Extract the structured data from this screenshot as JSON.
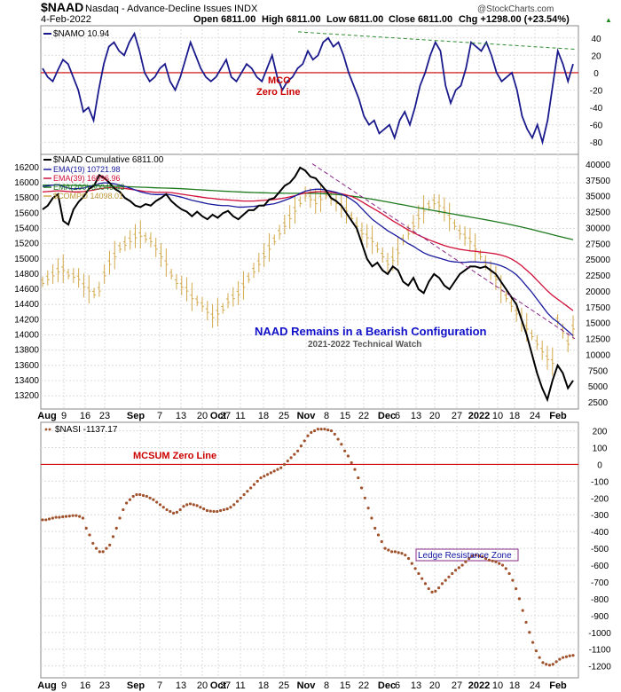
{
  "header": {
    "symbol": "$NAAD",
    "name": "Nasdaq - Advance-Decline Issues",
    "exchange": "INDX",
    "date": "4-Feb-2022",
    "open": "Open 6811.00",
    "high": "High 6811.00",
    "low": "Low 6811.00",
    "close": "Close 6811.00",
    "chg": "Chg +1298.00 (+23.54%)",
    "chg_arrow": "▲",
    "watermark": "@StockCharts.com"
  },
  "colors": {
    "navy": "#1a1a8c",
    "zero_red": "#cc0000",
    "ema19": "#1a1a9e",
    "ema39": "#d0103a",
    "ema200": "#1e7a1e",
    "compo": "#d2a94a",
    "nasi": "#a0522d",
    "trend_green": "#2e8b2e",
    "trend_purple": "#8a2a8a",
    "annot_blue": "#1010c8",
    "grid": "#dcdcdc"
  },
  "chart_data": [
    {
      "id": "namo",
      "type": "line",
      "title": "$NAMO 10.94",
      "ylim": [
        -90,
        50
      ],
      "yticks": [
        40,
        20,
        0,
        -20,
        -40,
        -60,
        -80
      ],
      "annotations": [
        "MCO",
        "Zero Line"
      ],
      "series": [
        {
          "name": "$NAMO",
          "values": [
            5,
            -5,
            -10,
            3,
            15,
            10,
            -5,
            -20,
            -45,
            -40,
            -55,
            -20,
            10,
            30,
            35,
            25,
            20,
            35,
            45,
            25,
            0,
            -10,
            -5,
            5,
            10,
            -10,
            -20,
            -5,
            15,
            35,
            20,
            5,
            -5,
            -10,
            -5,
            5,
            15,
            -5,
            -10,
            0,
            10,
            5,
            -5,
            -10,
            5,
            20,
            -5,
            -20,
            -10,
            -5,
            5,
            10,
            25,
            15,
            20,
            35,
            40,
            30,
            35,
            20,
            0,
            -15,
            -30,
            -50,
            -60,
            -55,
            -70,
            -65,
            -60,
            -75,
            -55,
            -45,
            -60,
            -40,
            -15,
            0,
            20,
            35,
            25,
            -15,
            -35,
            -20,
            -15,
            5,
            35,
            30,
            25,
            35,
            20,
            0,
            -10,
            -5,
            0,
            -20,
            -50,
            -65,
            -75,
            -60,
            -80,
            -55,
            -15,
            25,
            10,
            -10,
            10
          ]
        }
      ]
    },
    {
      "id": "naad",
      "type": "line",
      "title": "$NAAD Cumulative 6811.00",
      "ylim": [
        13050,
        16350
      ],
      "yticks_left": [
        16200,
        16000,
        15800,
        15600,
        15400,
        15200,
        15000,
        14800,
        14600,
        14400,
        14200,
        14000,
        13800,
        13600,
        13400,
        13200
      ],
      "yticks_right": [
        40000,
        37500,
        35000,
        32500,
        30000,
        27500,
        25000,
        22500,
        20000,
        17500,
        15000,
        12500,
        10000,
        7500,
        5000,
        2500
      ],
      "legend": [
        "EMA(19) 10721.98",
        "EMA(39) 16096.96",
        "EMA(200) 30049.43",
        "$COMPO 14098.01"
      ],
      "annotation": "NAAD Remains in a Bearish Configuration",
      "sub_annotation": "2021-2022 Technical Watch",
      "series": [
        {
          "name": "$NAAD Cumulative",
          "values": [
            15650,
            15700,
            15800,
            15850,
            15500,
            15450,
            15650,
            15750,
            15820,
            15920,
            15960,
            16100,
            16060,
            16000,
            15920,
            15880,
            15800,
            15760,
            15700,
            15680,
            15720,
            15700,
            15760,
            15800,
            15850,
            15760,
            15700,
            15650,
            15620,
            15560,
            15620,
            15560,
            15520,
            15580,
            15540,
            15600,
            15630,
            15560,
            15520,
            15580,
            15640,
            15640,
            15700,
            15700,
            15780,
            15800,
            15880,
            15960,
            16000,
            16080,
            16200,
            16160,
            16080,
            16060,
            15980,
            15900,
            15800,
            15760,
            15700,
            15600,
            15500,
            15400,
            15200,
            15000,
            14900,
            14950,
            14850,
            14800,
            14900,
            14850,
            14700,
            14650,
            14750,
            14600,
            14550,
            14700,
            14800,
            14750,
            14650,
            14600,
            14700,
            14800,
            14850,
            14900,
            14900,
            14880,
            14900,
            14850,
            14800,
            14700,
            14600,
            14500,
            14400,
            14200,
            14000,
            13750,
            13500,
            13300,
            13150,
            13400,
            13600,
            13500,
            13300,
            13400
          ]
        },
        {
          "name": "EMA(19)",
          "values": [
            15950,
            15960,
            15970,
            15975,
            15950,
            15930,
            15920,
            15925,
            15930,
            15950,
            15960,
            15990,
            16000,
            15995,
            15985,
            15970,
            15950,
            15930,
            15905,
            15880,
            15865,
            15850,
            15845,
            15845,
            15850,
            15840,
            15825,
            15810,
            15790,
            15770,
            15755,
            15740,
            15725,
            15715,
            15705,
            15700,
            15700,
            15690,
            15680,
            15680,
            15685,
            15690,
            15700,
            15705,
            15715,
            15725,
            15745,
            15770,
            15795,
            15825,
            15860,
            15890,
            15905,
            15915,
            15915,
            15905,
            15890,
            15875,
            15850,
            15820,
            15780,
            15730,
            15660,
            15590,
            15520,
            15470,
            15420,
            15370,
            15330,
            15290,
            15245,
            15200,
            15165,
            15120,
            15080,
            15050,
            15030,
            15010,
            14990,
            14970,
            14960,
            14955,
            14955,
            14960,
            14960,
            14955,
            14955,
            14945,
            14930,
            14910,
            14880,
            14840,
            14790,
            14720,
            14640,
            14560,
            14470,
            14380,
            14290,
            14220,
            14170,
            14110,
            14050,
            13990
          ]
        },
        {
          "name": "EMA(39)",
          "values": [
            15880,
            15885,
            15890,
            15895,
            15890,
            15885,
            15880,
            15880,
            15885,
            15895,
            15905,
            15920,
            15930,
            15935,
            15935,
            15930,
            15925,
            15915,
            15905,
            15895,
            15885,
            15880,
            15875,
            15875,
            15875,
            15870,
            15860,
            15850,
            15840,
            15830,
            15820,
            15810,
            15800,
            15795,
            15785,
            15780,
            15775,
            15770,
            15765,
            15760,
            15760,
            15760,
            15765,
            15770,
            15775,
            15780,
            15790,
            15800,
            15815,
            15830,
            15850,
            15865,
            15875,
            15880,
            15885,
            15880,
            15875,
            15865,
            15855,
            15840,
            15820,
            15790,
            15750,
            15710,
            15670,
            15630,
            15590,
            15545,
            15500,
            15460,
            15420,
            15380,
            15345,
            15310,
            15280,
            15250,
            15225,
            15200,
            15175,
            15155,
            15140,
            15125,
            15115,
            15105,
            15100,
            15090,
            15085,
            15075,
            15065,
            15050,
            15030,
            15000,
            14960,
            14910,
            14850,
            14790,
            14720,
            14650,
            14580,
            14520,
            14470,
            14420,
            14370,
            14320
          ]
        },
        {
          "name": "EMA(200)",
          "values": [
            15970,
            15970,
            15970,
            15970,
            15968,
            15966,
            15965,
            15963,
            15962,
            15961,
            15960,
            15960,
            15958,
            15956,
            15954,
            15952,
            15950,
            15948,
            15945,
            15942,
            15940,
            15937,
            15934,
            15932,
            15930,
            15928,
            15925,
            15922,
            15918,
            15914,
            15910,
            15906,
            15902,
            15898,
            15894,
            15890,
            15887,
            15884,
            15880,
            15877,
            15874,
            15872,
            15870,
            15868,
            15866,
            15865,
            15864,
            15863,
            15862,
            15862,
            15862,
            15862,
            15861,
            15860,
            15858,
            15855,
            15851,
            15846,
            15840,
            15833,
            15825,
            15816,
            15806,
            15795,
            15784,
            15772,
            15760,
            15748,
            15735,
            15722,
            15710,
            15697,
            15684,
            15671,
            15658,
            15646,
            15634,
            15622,
            15610,
            15598,
            15586,
            15574,
            15562,
            15550,
            15538,
            15526,
            15514,
            15502,
            15489,
            15476,
            15462,
            15448,
            15433,
            15418,
            15402,
            15386,
            15369,
            15352,
            15335,
            15318,
            15301,
            15284,
            15268,
            15252
          ]
        },
        {
          "name": "$COMPO",
          "values": [
            14700,
            14750,
            14800,
            14850,
            14870,
            14800,
            14780,
            14750,
            14650,
            14600,
            14550,
            14600,
            14800,
            14950,
            15050,
            15150,
            15200,
            15250,
            15300,
            15320,
            15280,
            15250,
            15150,
            15050,
            14950,
            14800,
            14700,
            14650,
            14600,
            14500,
            14450,
            14400,
            14320,
            14250,
            14300,
            14350,
            14450,
            14500,
            14550,
            14650,
            14750,
            14850,
            14950,
            15050,
            15150,
            15250,
            15350,
            15450,
            15550,
            15650,
            15750,
            15850,
            15800,
            15750,
            15800,
            15850,
            15800,
            15750,
            15700,
            15650,
            15550,
            15450,
            15350,
            15300,
            15250,
            15150,
            15050,
            14950,
            15000,
            15100,
            15250,
            15350,
            15450,
            15550,
            15650,
            15700,
            15750,
            15720,
            15650,
            15550,
            15450,
            15350,
            15300,
            15250,
            15150,
            15050,
            14950,
            14850,
            14750,
            14600,
            14500,
            14400,
            14300,
            14200,
            14100,
            14000,
            13900,
            13800,
            13700,
            13650,
            14200,
            14050,
            13900,
            14100
          ]
        }
      ]
    },
    {
      "id": "nasi",
      "type": "scatter",
      "title": "$NASI -1137.17",
      "ylim": [
        -1260,
        240
      ],
      "yticks": [
        200,
        100,
        0,
        -100,
        -200,
        -300,
        -400,
        -500,
        -600,
        -700,
        -800,
        -900,
        -1000,
        -1100,
        -1200
      ],
      "annotations": [
        "MCSUM Zero Line",
        "Ledge Resistance Zone"
      ],
      "series": [
        {
          "name": "$NASI",
          "values": [
            -330,
            -330,
            -325,
            -320,
            -315,
            -315,
            -312,
            -310,
            -308,
            -305,
            -305,
            -310,
            -320,
            -380,
            -420,
            -470,
            -500,
            -520,
            -520,
            -500,
            -480,
            -430,
            -380,
            -320,
            -270,
            -230,
            -210,
            -190,
            -180,
            -180,
            -185,
            -190,
            -200,
            -210,
            -225,
            -240,
            -255,
            -270,
            -280,
            -290,
            -285,
            -270,
            -250,
            -240,
            -235,
            -240,
            -245,
            -255,
            -265,
            -275,
            -278,
            -280,
            -280,
            -275,
            -270,
            -265,
            -255,
            -240,
            -220,
            -200,
            -180,
            -160,
            -140,
            -120,
            -100,
            -80,
            -70,
            -60,
            -50,
            -40,
            -30,
            -20,
            0,
            20,
            40,
            60,
            80,
            110,
            140,
            170,
            190,
            200,
            210,
            210,
            210,
            205,
            200,
            180,
            150,
            120,
            80,
            50,
            10,
            -30,
            -80,
            -140,
            -200,
            -260,
            -320,
            -380,
            -420,
            -460,
            -500,
            -510,
            -520,
            -520,
            -525,
            -530,
            -540,
            -560,
            -590,
            -620,
            -650,
            -680,
            -710,
            -740,
            -760,
            -755,
            -735,
            -710,
            -690,
            -670,
            -650,
            -630,
            -615,
            -600,
            -580,
            -560,
            -545,
            -540,
            -545,
            -550,
            -560,
            -570,
            -575,
            -580,
            -590,
            -600,
            -620,
            -650,
            -690,
            -740,
            -800,
            -870,
            -940,
            -1000,
            -1060,
            -1110,
            -1150,
            -1180,
            -1190,
            -1195,
            -1190,
            -1175,
            -1160,
            -1150,
            -1145,
            -1140,
            -1137
          ]
        }
      ]
    }
  ],
  "x_axis_top": [
    "Aug",
    "9",
    "16",
    "23",
    "Sep",
    "7",
    "13",
    "20",
    "27",
    "Oct",
    "11",
    "18",
    "25",
    "Nov",
    "8",
    "15",
    "22",
    "Dec",
    "6",
    "13",
    "20",
    "27",
    "2022",
    "10",
    "18",
    "24",
    "Feb"
  ],
  "x_axis_bottom": [
    "Aug",
    "9",
    "16",
    "23",
    "Sep",
    "7",
    "13",
    "20",
    "27",
    "Oct",
    "11",
    "18",
    "25",
    "Nov",
    "8",
    "15",
    "22",
    "Dec",
    "6",
    "13",
    "20",
    "27",
    "2022",
    "10",
    "18",
    "24",
    "Feb"
  ]
}
